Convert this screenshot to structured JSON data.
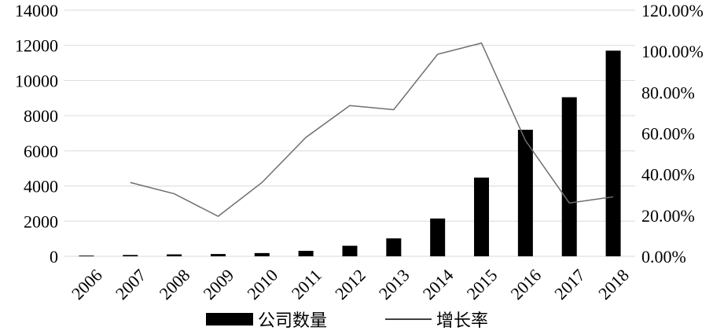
{
  "chart_data": {
    "type": "bar+line",
    "title": "",
    "categories": [
      "2006",
      "2007",
      "2008",
      "2009",
      "2010",
      "2011",
      "2012",
      "2013",
      "2014",
      "2015",
      "2016",
      "2017",
      "2018"
    ],
    "series": [
      {
        "name": "公司数量",
        "type": "bar",
        "axis": "left",
        "color": "#000000",
        "values": [
          40,
          75,
          110,
          130,
          185,
          310,
          600,
          1020,
          2150,
          4480,
          7200,
          9050,
          11700
        ]
      },
      {
        "name": "增长率",
        "type": "line",
        "axis": "right",
        "color": "#6e6e6e",
        "values": [
          null,
          36,
          30.5,
          19.5,
          36,
          58,
          73.5,
          71.5,
          98.5,
          104,
          56.5,
          26,
          29
        ]
      }
    ],
    "left_axis": {
      "ylim": [
        0,
        14000
      ],
      "ticks": [
        "0",
        "2000",
        "4000",
        "6000",
        "8000",
        "10000",
        "12000",
        "14000"
      ]
    },
    "right_axis": {
      "ylim": [
        0,
        120
      ],
      "ticks": [
        "0.00%",
        "20.00%",
        "40.00%",
        "60.00%",
        "80.00%",
        "100.00%",
        "120.00%"
      ]
    },
    "grid": "horizontal",
    "legend_position": "bottom-center"
  }
}
